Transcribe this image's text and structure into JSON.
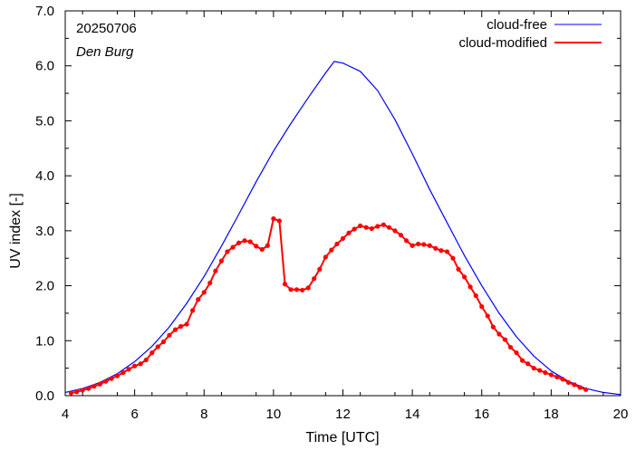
{
  "chart_data": {
    "type": "line",
    "title": "",
    "xlabel": "Time  [UTC]",
    "ylabel": "UV index  [-]",
    "xlim": [
      4,
      20
    ],
    "ylim": [
      0,
      7
    ],
    "x_ticks": [
      4,
      6,
      8,
      10,
      12,
      14,
      16,
      18,
      20
    ],
    "x_tick_labels": [
      "4",
      "6",
      "8",
      "10",
      "12",
      "14",
      "16",
      "18",
      "20"
    ],
    "y_ticks": [
      0,
      1,
      2,
      3,
      4,
      5,
      6,
      7
    ],
    "y_tick_labels": [
      "0.0",
      "1.0",
      "2.0",
      "3.0",
      "4.0",
      "5.0",
      "6.0",
      "7.0"
    ],
    "grid": false,
    "legend_position": "top-right",
    "annotations": {
      "date": "20250706",
      "station": "Den Burg"
    },
    "series": [
      {
        "name": "cloud-free",
        "color": "#0000ff",
        "style": "line",
        "x": [
          4.0,
          4.5,
          5.0,
          5.5,
          6.0,
          6.5,
          7.0,
          7.5,
          8.0,
          8.5,
          9.0,
          9.5,
          10.0,
          10.5,
          11.0,
          11.5,
          11.75,
          12.0,
          12.5,
          13.0,
          13.5,
          14.0,
          14.5,
          15.0,
          15.5,
          16.0,
          16.5,
          17.0,
          17.5,
          18.0,
          18.5,
          19.0,
          19.5,
          20.0
        ],
        "y": [
          0.06,
          0.13,
          0.24,
          0.4,
          0.62,
          0.9,
          1.25,
          1.68,
          2.17,
          2.72,
          3.3,
          3.89,
          4.45,
          4.95,
          5.42,
          5.87,
          6.08,
          6.05,
          5.9,
          5.55,
          5.02,
          4.4,
          3.75,
          3.15,
          2.55,
          2.0,
          1.5,
          1.07,
          0.72,
          0.45,
          0.26,
          0.13,
          0.06,
          0.02
        ]
      },
      {
        "name": "cloud-modified",
        "color": "#ff0000",
        "style": "line-points",
        "x": [
          4.17,
          4.33,
          4.5,
          4.67,
          4.83,
          5.0,
          5.17,
          5.33,
          5.5,
          5.67,
          5.83,
          6.0,
          6.17,
          6.33,
          6.5,
          6.67,
          6.83,
          7.0,
          7.17,
          7.33,
          7.5,
          7.67,
          7.83,
          8.0,
          8.17,
          8.33,
          8.5,
          8.67,
          8.83,
          9.0,
          9.17,
          9.33,
          9.5,
          9.67,
          9.83,
          10.0,
          10.17,
          10.33,
          10.5,
          10.67,
          10.83,
          11.0,
          11.17,
          11.33,
          11.5,
          11.67,
          11.83,
          12.0,
          12.17,
          12.33,
          12.5,
          12.67,
          12.83,
          13.0,
          13.17,
          13.33,
          13.5,
          13.67,
          13.83,
          14.0,
          14.17,
          14.33,
          14.5,
          14.67,
          14.83,
          15.0,
          15.17,
          15.33,
          15.5,
          15.67,
          15.83,
          16.0,
          16.17,
          16.33,
          16.5,
          16.67,
          16.83,
          17.0,
          17.17,
          17.33,
          17.5,
          17.67,
          17.83,
          18.0,
          18.17,
          18.33,
          18.5,
          18.67,
          18.83,
          19.0
        ],
        "y": [
          0.05,
          0.07,
          0.1,
          0.13,
          0.17,
          0.21,
          0.26,
          0.31,
          0.36,
          0.42,
          0.48,
          0.54,
          0.58,
          0.65,
          0.78,
          0.89,
          0.98,
          1.1,
          1.2,
          1.26,
          1.3,
          1.55,
          1.75,
          1.88,
          2.05,
          2.27,
          2.45,
          2.62,
          2.7,
          2.78,
          2.82,
          2.8,
          2.72,
          2.66,
          2.73,
          3.22,
          3.18,
          2.03,
          1.93,
          1.93,
          1.92,
          1.96,
          2.13,
          2.3,
          2.52,
          2.65,
          2.76,
          2.86,
          2.96,
          3.03,
          3.09,
          3.06,
          3.04,
          3.08,
          3.11,
          3.06,
          3.0,
          2.92,
          2.82,
          2.73,
          2.76,
          2.75,
          2.73,
          2.68,
          2.64,
          2.62,
          2.5,
          2.3,
          2.16,
          1.98,
          1.82,
          1.62,
          1.45,
          1.25,
          1.12,
          1.02,
          0.88,
          0.78,
          0.64,
          0.58,
          0.5,
          0.46,
          0.42,
          0.38,
          0.34,
          0.3,
          0.24,
          0.2,
          0.15,
          0.11
        ]
      }
    ]
  }
}
